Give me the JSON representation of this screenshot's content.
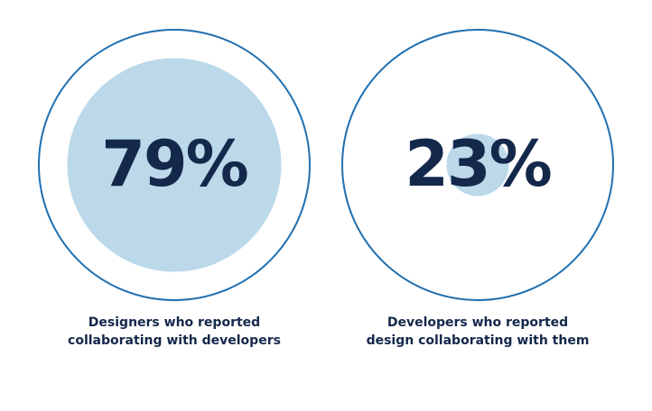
{
  "chart_data": {
    "type": "proportion-circles",
    "categories": [
      "Designers who reported collaborating with developers",
      "Developers who reported design collaborating with them"
    ],
    "values": [
      79,
      23
    ],
    "value_labels": [
      "79%",
      "23%"
    ],
    "color": "#bcd9ea",
    "outline_color": "#1f6fb0",
    "text_color": "#14284b",
    "ylim": [
      0,
      100
    ]
  }
}
